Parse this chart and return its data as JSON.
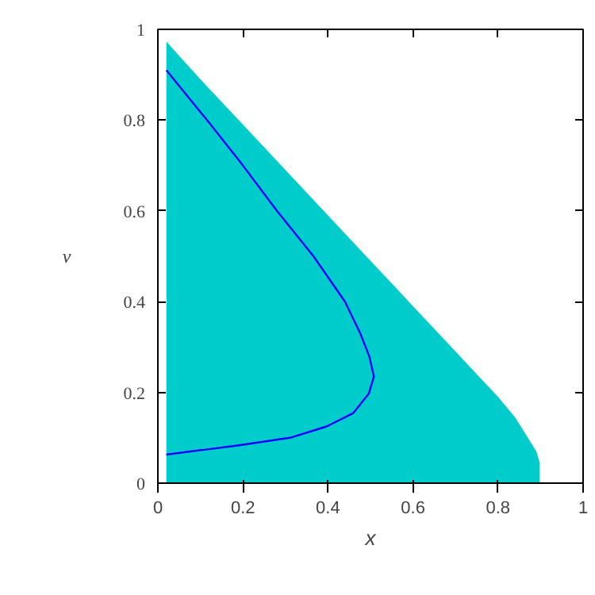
{
  "chart_data": {
    "type": "area",
    "xlabel": "x",
    "ylabel": "v",
    "xlim": [
      0,
      1
    ],
    "ylim": [
      0,
      1
    ],
    "xticks": [
      0,
      0.2,
      0.4,
      0.6,
      0.8,
      1
    ],
    "yticks": [
      0,
      0.2,
      0.4,
      0.6,
      0.8,
      1
    ],
    "grid": false,
    "series": [
      {
        "color": "#00cccc",
        "x": [
          0.02,
          0.1,
          0.2,
          0.3,
          0.4,
          0.5,
          0.6,
          0.7,
          0.75,
          0.8,
          0.84,
          0.87,
          0.89,
          0.898
        ],
        "values": [
          0.973,
          0.89,
          0.79,
          0.69,
          0.59,
          0.49,
          0.39,
          0.29,
          0.24,
          0.19,
          0.145,
          0.1,
          0.07,
          0.045
        ]
      },
      {
        "type": "line",
        "color": "#0000ff",
        "x": [
          0.02,
          0.12,
          0.2,
          0.28,
          0.366,
          0.44,
          0.476,
          0.497,
          0.508,
          0.496,
          0.459,
          0.397,
          0.311,
          0.188,
          0.02
        ],
        "values": [
          0.91,
          0.795,
          0.7,
          0.6,
          0.5,
          0.4,
          0.33,
          0.28,
          0.235,
          0.197,
          0.154,
          0.125,
          0.1,
          0.083,
          0.063
        ]
      }
    ]
  }
}
